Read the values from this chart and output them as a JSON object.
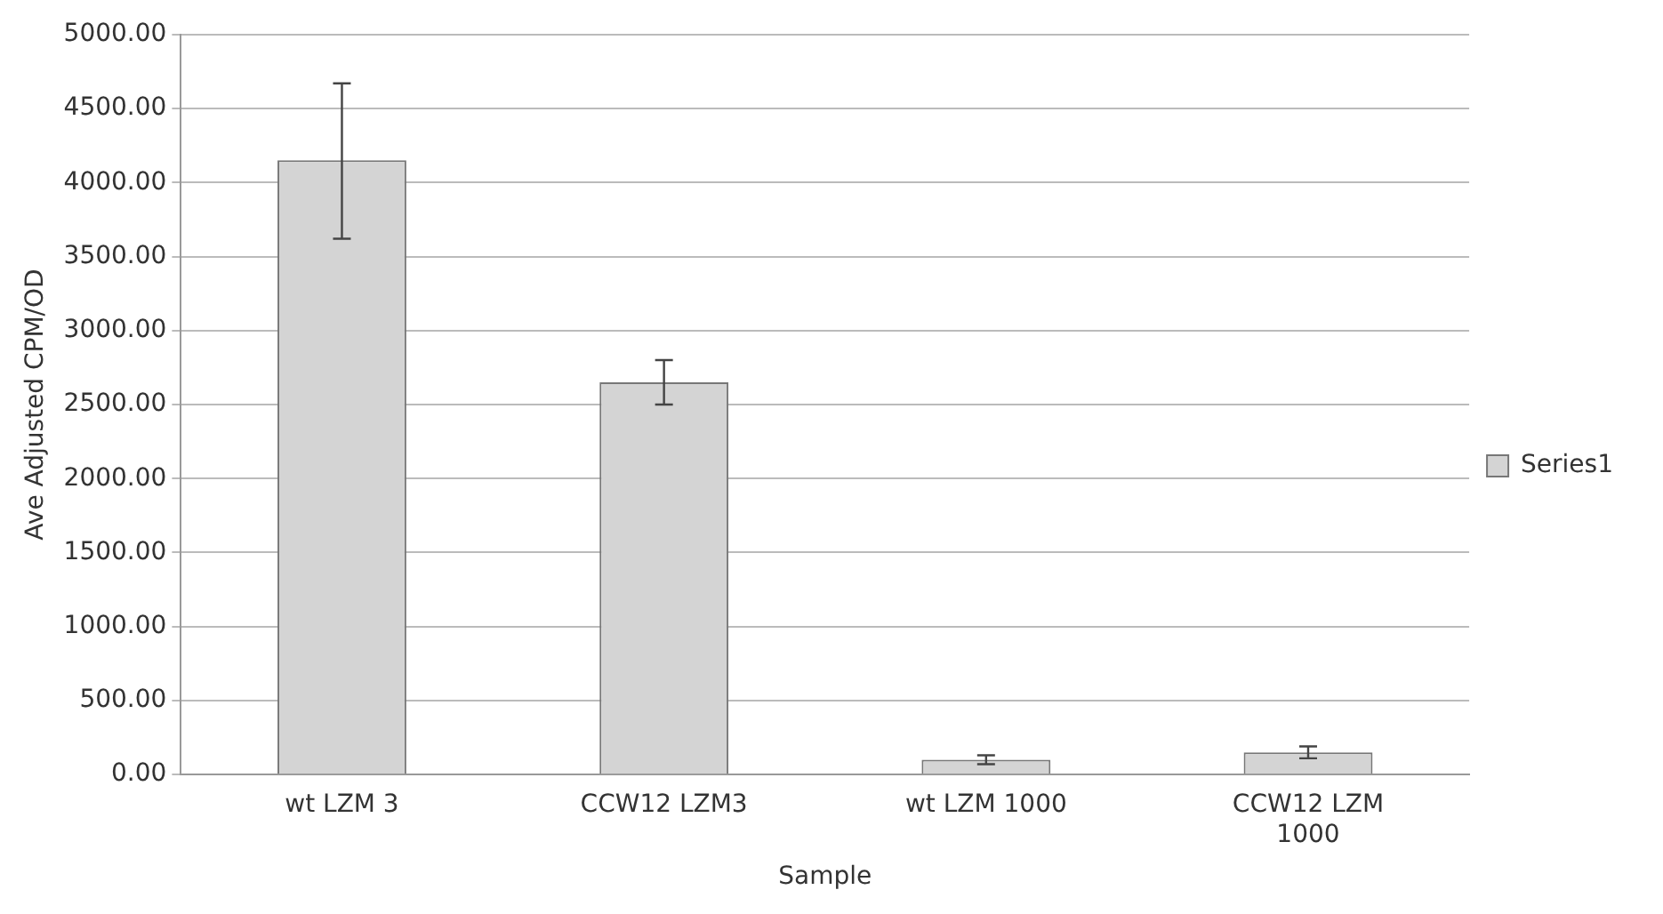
{
  "chart_data": {
    "type": "bar",
    "xlabel": "Sample",
    "ylabel": "Ave Adjusted CPM/OD",
    "categories": [
      "wt LZM 3",
      "CCW12 LZM3",
      "wt LZM 1000",
      "CCW12 LZM 1000"
    ],
    "series": [
      {
        "name": "Series1",
        "color": "#d4d4d4",
        "values": [
          4150,
          2650,
          100,
          150
        ],
        "errors": [
          [
            3620,
            4670
          ],
          [
            2500,
            2800
          ],
          [
            70,
            130
          ],
          [
            110,
            190
          ]
        ]
      }
    ],
    "ylim": [
      0,
      5000
    ],
    "yticks": [
      {
        "value": 0,
        "label": "0.00"
      },
      {
        "value": 500,
        "label": "500.00"
      },
      {
        "value": 1000,
        "label": "1000.00"
      },
      {
        "value": 1500,
        "label": "1500.00"
      },
      {
        "value": 2000,
        "label": "2000.00"
      },
      {
        "value": 2500,
        "label": "2500.00"
      },
      {
        "value": 3000,
        "label": "3000.00"
      },
      {
        "value": 3500,
        "label": "3500.00"
      },
      {
        "value": 4000,
        "label": "4000.00"
      },
      {
        "value": 4500,
        "label": "4500.00"
      },
      {
        "value": 5000,
        "label": "5000.00"
      }
    ],
    "grid": "y",
    "legend": "right"
  }
}
